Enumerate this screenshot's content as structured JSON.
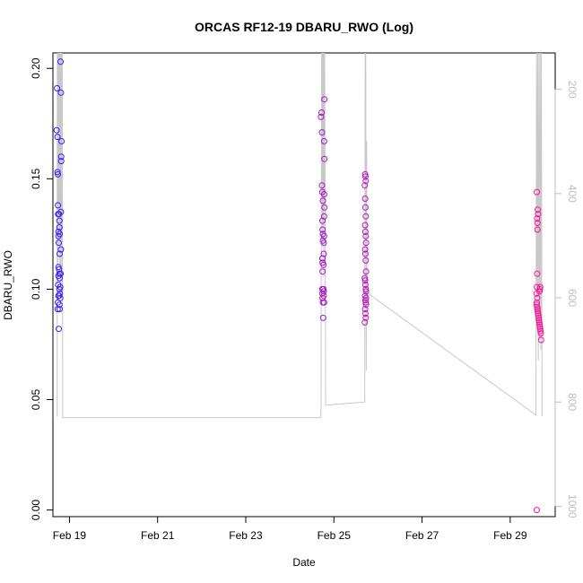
{
  "chart_data": {
    "type": "scatter",
    "title": "ORCAS RF12-19 DBARU_RWO (Log)",
    "xlabel": "Date",
    "ylabel": "DBARU_RWO",
    "x_ticks": [
      "Feb 19",
      "Feb 21",
      "Feb 23",
      "Feb 25",
      "Feb 27",
      "Feb 29"
    ],
    "y_ticks": [
      "0.00",
      "0.05",
      "0.10",
      "0.15",
      "0.20"
    ],
    "y2_ticks": [
      "200",
      "400",
      "600",
      "800",
      "1000"
    ],
    "xlim": [
      "2016-02-18T15:00",
      "2016-03-01T00:30"
    ],
    "ylim": [
      -0.003,
      0.207
    ],
    "y2lim": [
      1020,
      130
    ],
    "y2_reversed": true,
    "grid": false,
    "colors": {
      "first_flight": "#3b1cff",
      "last_flight": "#ff1493",
      "secondary_line": "#c8c8c8"
    },
    "series": [
      {
        "points": [
          [
            "2016-02-18T17:00",
            0.172
          ],
          [
            "2016-02-18T17:15",
            0.191
          ],
          [
            "2016-02-18T17:30",
            0.169
          ],
          [
            "2016-02-18T17:30",
            0.153
          ],
          [
            "2016-02-18T17:40",
            0.152
          ],
          [
            "2016-02-18T17:45",
            0.138
          ],
          [
            "2016-02-18T17:50",
            0.134
          ],
          [
            "2016-02-18T18:00",
            0.126
          ],
          [
            "2016-02-18T18:00",
            0.124
          ],
          [
            "2016-02-18T18:10",
            0.121
          ],
          [
            "2016-02-18T18:00",
            0.11
          ],
          [
            "2016-02-18T18:00",
            0.106
          ],
          [
            "2016-02-18T17:50",
            0.102
          ],
          [
            "2016-02-18T18:00",
            0.097
          ],
          [
            "2016-02-18T17:40",
            0.094
          ],
          [
            "2016-02-18T17:35",
            0.091
          ],
          [
            "2016-02-18T18:10",
            0.082
          ],
          [
            "2016-02-18T18:20",
            0.134
          ],
          [
            "2016-02-18T18:30",
            0.131
          ],
          [
            "2016-02-18T18:30",
            0.128
          ],
          [
            "2016-02-18T18:40",
            0.125
          ],
          [
            "2016-02-18T18:40",
            0.116
          ],
          [
            "2016-02-18T18:20",
            0.109
          ],
          [
            "2016-02-18T18:30",
            0.107
          ],
          [
            "2016-02-18T18:40",
            0.105
          ],
          [
            "2016-02-18T18:30",
            0.1
          ],
          [
            "2016-02-18T18:20",
            0.097
          ],
          [
            "2016-02-18T18:30",
            0.093
          ],
          [
            "2016-02-18T18:40",
            0.091
          ],
          [
            "2016-02-18T18:50",
            0.098
          ],
          [
            "2016-02-18T19:00",
            0.101
          ],
          [
            "2016-02-18T19:00",
            0.096
          ],
          [
            "2016-02-18T19:10",
            0.107
          ],
          [
            "2016-02-18T19:20",
            0.118
          ],
          [
            "2016-02-18T19:20",
            0.135
          ],
          [
            "2016-02-18T19:30",
            0.16
          ],
          [
            "2016-02-18T19:30",
            0.158
          ],
          [
            "2016-02-18T19:40",
            0.167
          ],
          [
            "2016-02-18T19:20",
            0.189
          ],
          [
            "2016-02-18T19:10",
            0.203
          ]
        ]
      },
      {
        "points": [
          [
            "2016-02-24T17:00",
            0.178
          ],
          [
            "2016-02-24T17:15",
            0.18
          ],
          [
            "2016-02-24T17:30",
            0.171
          ],
          [
            "2016-02-24T17:30",
            0.147
          ],
          [
            "2016-02-24T17:40",
            0.144
          ],
          [
            "2016-02-24T18:00",
            0.14
          ],
          [
            "2016-02-24T17:45",
            0.131
          ],
          [
            "2016-02-24T17:50",
            0.127
          ],
          [
            "2016-02-24T18:00",
            0.125
          ],
          [
            "2016-02-24T18:00",
            0.122
          ],
          [
            "2016-02-24T17:45",
            0.114
          ],
          [
            "2016-02-24T17:50",
            0.112
          ],
          [
            "2016-02-24T17:50",
            0.108
          ],
          [
            "2016-02-24T17:40",
            0.1
          ],
          [
            "2016-02-24T17:40",
            0.098
          ],
          [
            "2016-02-24T17:50",
            0.096
          ],
          [
            "2016-02-24T18:00",
            0.094
          ],
          [
            "2016-02-24T18:10",
            0.087
          ],
          [
            "2016-02-24T18:20",
            0.1
          ],
          [
            "2016-02-24T18:30",
            0.099
          ],
          [
            "2016-02-24T18:30",
            0.097
          ],
          [
            "2016-02-24T18:40",
            0.094
          ],
          [
            "2016-02-24T18:20",
            0.111
          ],
          [
            "2016-02-24T18:30",
            0.116
          ],
          [
            "2016-02-24T18:30",
            0.121
          ],
          [
            "2016-02-24T18:40",
            0.124
          ],
          [
            "2016-02-24T18:40",
            0.133
          ],
          [
            "2016-02-24T18:50",
            0.137
          ],
          [
            "2016-02-24T18:40",
            0.143
          ],
          [
            "2016-02-24T18:50",
            0.159
          ],
          [
            "2016-02-24T18:40",
            0.167
          ],
          [
            "2016-02-24T18:50",
            0.186
          ]
        ]
      },
      {
        "points": [
          [
            "2016-02-25T16:50",
            0.147
          ],
          [
            "2016-02-25T17:00",
            0.152
          ],
          [
            "2016-02-25T17:10",
            0.151
          ],
          [
            "2016-02-25T17:20",
            0.149
          ],
          [
            "2016-02-25T17:00",
            0.141
          ],
          [
            "2016-02-25T17:10",
            0.137
          ],
          [
            "2016-02-25T17:20",
            0.133
          ],
          [
            "2016-02-25T17:00",
            0.129
          ],
          [
            "2016-02-25T17:10",
            0.126
          ],
          [
            "2016-02-25T17:20",
            0.124
          ],
          [
            "2016-02-25T17:30",
            0.121
          ],
          [
            "2016-02-25T17:00",
            0.118
          ],
          [
            "2016-02-25T17:10",
            0.116
          ],
          [
            "2016-02-25T17:20",
            0.113
          ],
          [
            "2016-02-25T17:30",
            0.108
          ],
          [
            "2016-02-25T16:50",
            0.105
          ],
          [
            "2016-02-25T17:00",
            0.104
          ],
          [
            "2016-02-25T17:10",
            0.102
          ],
          [
            "2016-02-25T17:20",
            0.1
          ],
          [
            "2016-02-25T17:30",
            0.099
          ],
          [
            "2016-02-25T17:00",
            0.097
          ],
          [
            "2016-02-25T17:10",
            0.095
          ],
          [
            "2016-02-25T17:20",
            0.094
          ],
          [
            "2016-02-25T17:30",
            0.093
          ],
          [
            "2016-02-25T17:00",
            0.091
          ],
          [
            "2016-02-25T17:10",
            0.089
          ],
          [
            "2016-02-25T17:20",
            0.087
          ],
          [
            "2016-02-25T16:50",
            0.085
          ],
          [
            "2016-02-25T17:30",
            0.096
          ]
        ]
      },
      {
        "points": [
          [
            "2016-02-29T14:30",
            0.144
          ],
          [
            "2016-02-29T15:00",
            0.136
          ],
          [
            "2016-02-29T15:10",
            0.134
          ],
          [
            "2016-02-29T14:40",
            0.132
          ],
          [
            "2016-02-29T14:50",
            0.13
          ],
          [
            "2016-02-29T14:50",
            0.127
          ],
          [
            "2016-02-29T14:40",
            0.107
          ],
          [
            "2016-02-29T14:30",
            0.101
          ],
          [
            "2016-02-29T14:20",
            0.098
          ],
          [
            "2016-02-29T14:40",
            0.096
          ],
          [
            "2016-02-29T14:30",
            0.094
          ],
          [
            "2016-02-29T14:20",
            0.093
          ],
          [
            "2016-02-29T14:40",
            0.092
          ],
          [
            "2016-02-29T14:50",
            0.091
          ],
          [
            "2016-02-29T15:00",
            0.09
          ],
          [
            "2016-02-29T15:10",
            0.089
          ],
          [
            "2016-02-29T15:20",
            0.088
          ],
          [
            "2016-02-29T15:30",
            0.087
          ],
          [
            "2016-02-29T15:40",
            0.086
          ],
          [
            "2016-02-29T15:50",
            0.085
          ],
          [
            "2016-02-29T16:00",
            0.084
          ],
          [
            "2016-02-29T16:10",
            0.083
          ],
          [
            "2016-02-29T16:20",
            0.082
          ],
          [
            "2016-02-29T16:30",
            0.081
          ],
          [
            "2016-02-29T16:40",
            0.08
          ],
          [
            "2016-02-29T16:50",
            0.077
          ],
          [
            "2016-02-29T16:00",
            0.099
          ],
          [
            "2016-02-29T16:10",
            0.1
          ],
          [
            "2016-02-29T16:20",
            0.101
          ],
          [
            "2016-02-29T14:30",
            0.0
          ]
        ]
      }
    ],
    "secondary_line": {
      "axis": "right",
      "points": [
        [
          "2016-02-18T17:00",
          827
        ],
        [
          "2016-02-18T17:20",
          827
        ],
        [
          "2016-02-18T17:25",
          130
        ],
        [
          "2016-02-18T17:35",
          600
        ],
        [
          "2016-02-18T17:45",
          130
        ],
        [
          "2016-02-18T17:55",
          500
        ],
        [
          "2016-02-18T18:05",
          130
        ],
        [
          "2016-02-18T18:15",
          420
        ],
        [
          "2016-02-18T18:25",
          130
        ],
        [
          "2016-02-18T18:35",
          560
        ],
        [
          "2016-02-18T18:45",
          130
        ],
        [
          "2016-02-18T18:55",
          450
        ],
        [
          "2016-02-18T19:05",
          130
        ],
        [
          "2016-02-18T19:15",
          600
        ],
        [
          "2016-02-18T19:25",
          130
        ],
        [
          "2016-02-18T19:35",
          480
        ],
        [
          "2016-02-18T19:45",
          130
        ],
        [
          "2016-02-18T19:55",
          600
        ],
        [
          "2016-02-18T20:05",
          130
        ],
        [
          "2016-02-18T20:20",
          830
        ],
        [
          "2016-02-24T17:00",
          830
        ],
        [
          "2016-02-24T17:20",
          130
        ],
        [
          "2016-02-24T17:30",
          400
        ],
        [
          "2016-02-24T17:40",
          130
        ],
        [
          "2016-02-24T17:50",
          500
        ],
        [
          "2016-02-24T18:00",
          130
        ],
        [
          "2016-02-24T18:10",
          460
        ],
        [
          "2016-02-24T18:20",
          130
        ],
        [
          "2016-02-24T18:30",
          560
        ],
        [
          "2016-02-24T18:40",
          130
        ],
        [
          "2016-02-24T18:50",
          430
        ],
        [
          "2016-02-24T19:00",
          130
        ],
        [
          "2016-02-24T19:30",
          806
        ],
        [
          "2016-02-25T16:50",
          800
        ],
        [
          "2016-02-25T17:00",
          130
        ],
        [
          "2016-02-25T17:10",
          250
        ],
        [
          "2016-02-25T17:20",
          130
        ],
        [
          "2016-02-25T17:30",
          600
        ],
        [
          "2016-02-25T17:40",
          740
        ],
        [
          "2016-02-25T17:50",
          300
        ],
        [
          "2016-02-25T18:00",
          590
        ],
        [
          "2016-02-29T14:00",
          825
        ],
        [
          "2016-02-29T14:20",
          130
        ],
        [
          "2016-02-29T14:40",
          600
        ],
        [
          "2016-02-29T15:00",
          130
        ],
        [
          "2016-02-29T15:20",
          720
        ],
        [
          "2016-02-29T15:40",
          130
        ],
        [
          "2016-02-29T16:00",
          680
        ],
        [
          "2016-02-29T16:20",
          130
        ],
        [
          "2016-02-29T16:40",
          700
        ],
        [
          "2016-02-29T17:00",
          130
        ],
        [
          "2016-02-29T17:20",
          826
        ],
        [
          "2016-02-29T17:40",
          826
        ]
      ]
    }
  }
}
